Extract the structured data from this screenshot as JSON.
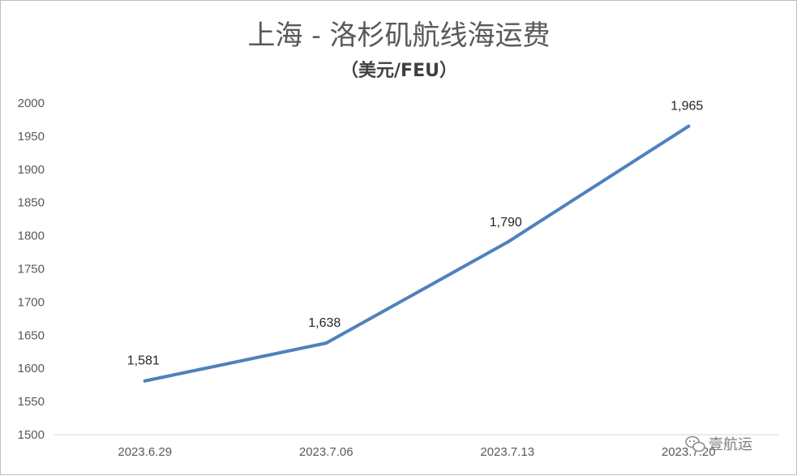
{
  "colors": {
    "series": "#4f81bd",
    "axis": "#d9d9d9",
    "text": "#595959"
  },
  "chart_data": {
    "type": "line",
    "title": "上海 - 洛杉矶航线海运费",
    "subtitle": "（美元/FEU）",
    "categories": [
      "2023.6.29",
      "2023.7.06",
      "2023.7.13",
      "2023.7.20"
    ],
    "series": [
      {
        "values": [
          1581,
          1638,
          1790,
          1965
        ],
        "data_labels": [
          "1,581",
          "1,638",
          "1,790",
          "1,965"
        ]
      }
    ],
    "ylim": [
      1500,
      2000
    ],
    "yticks": [
      1500,
      1550,
      1600,
      1650,
      1700,
      1750,
      1800,
      1850,
      1900,
      1950,
      2000
    ],
    "grid": false,
    "legend": "none"
  },
  "watermark": {
    "text": "壹航运",
    "icon": "wechat-icon"
  }
}
